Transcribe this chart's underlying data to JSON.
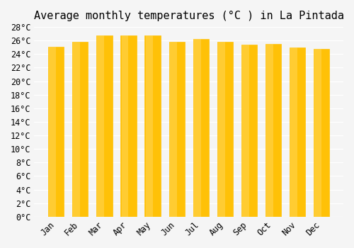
{
  "months": [
    "Jan",
    "Feb",
    "Mar",
    "Apr",
    "May",
    "Jun",
    "Jul",
    "Aug",
    "Sep",
    "Oct",
    "Nov",
    "Dec"
  ],
  "values": [
    25.1,
    25.8,
    26.8,
    26.8,
    26.8,
    25.8,
    26.2,
    25.8,
    25.4,
    25.5,
    25.0,
    24.8
  ],
  "bar_color_top": "#FFC107",
  "bar_color_bottom": "#FFD54F",
  "title": "Average monthly temperatures (°C ) in La Pintada",
  "ylim": [
    0,
    28
  ],
  "ytick_step": 2,
  "background_color": "#f5f5f5",
  "grid_color": "#ffffff",
  "title_fontsize": 11,
  "tick_fontsize": 8.5,
  "font_family": "monospace"
}
